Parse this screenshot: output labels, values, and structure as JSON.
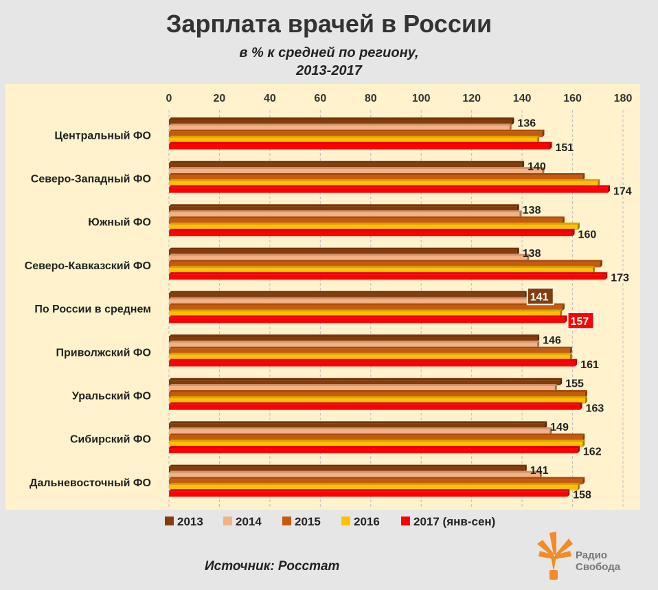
{
  "chart_data": {
    "type": "bar",
    "orientation": "horizontal",
    "title": "Зарплата врачей в России",
    "subtitle": [
      "в % к средней  по региону,",
      "2013-2017"
    ],
    "xlim": [
      0,
      180
    ],
    "x_ticks": [
      0,
      20,
      40,
      60,
      80,
      100,
      120,
      140,
      160,
      180
    ],
    "x_axis_position": "top",
    "grid": "vertical dashed",
    "legend_position": "bottom",
    "categories": [
      "Центральный ФО",
      "Северо-Западный ФО",
      "Южный ФО",
      "Северо-Кавказский ФО",
      "По России в среднем",
      "Приволжский ФО",
      "Уральский ФО",
      "Сибирский ФО",
      "Дальневосточный ФО"
    ],
    "series": [
      {
        "name": "2013",
        "color": "#843c0c",
        "values": [
          136,
          140,
          138,
          138,
          141,
          146,
          155,
          149,
          141
        ]
      },
      {
        "name": "2014",
        "color": "#f4b183",
        "values": [
          135,
          148,
          139,
          142,
          142,
          146,
          153,
          151,
          147
        ]
      },
      {
        "name": "2015",
        "color": "#c55a11",
        "values": [
          148,
          164,
          156,
          171,
          156,
          159,
          165,
          164,
          164
        ]
      },
      {
        "name": "2016",
        "color": "#ffc000",
        "values": [
          146,
          170,
          162,
          168,
          155,
          159,
          165,
          164,
          162
        ]
      },
      {
        "name": "2017 (янв-сен)",
        "color": "#ff0000",
        "values": [
          151,
          174,
          160,
          173,
          157,
          161,
          163,
          162,
          158
        ]
      }
    ],
    "data_labels": {
      "first_series": [
        136,
        140,
        138,
        138,
        141,
        146,
        155,
        149,
        141
      ],
      "last_series": [
        151,
        174,
        160,
        173,
        157,
        161,
        163,
        162,
        158
      ]
    },
    "highlight_category": "По России в среднем"
  },
  "source": "Источник:  Росстат",
  "logo": {
    "line1": "Радио",
    "line2": "Свобода",
    "icon": "radio-svoboda-flame-icon",
    "color": "#f28c28"
  }
}
